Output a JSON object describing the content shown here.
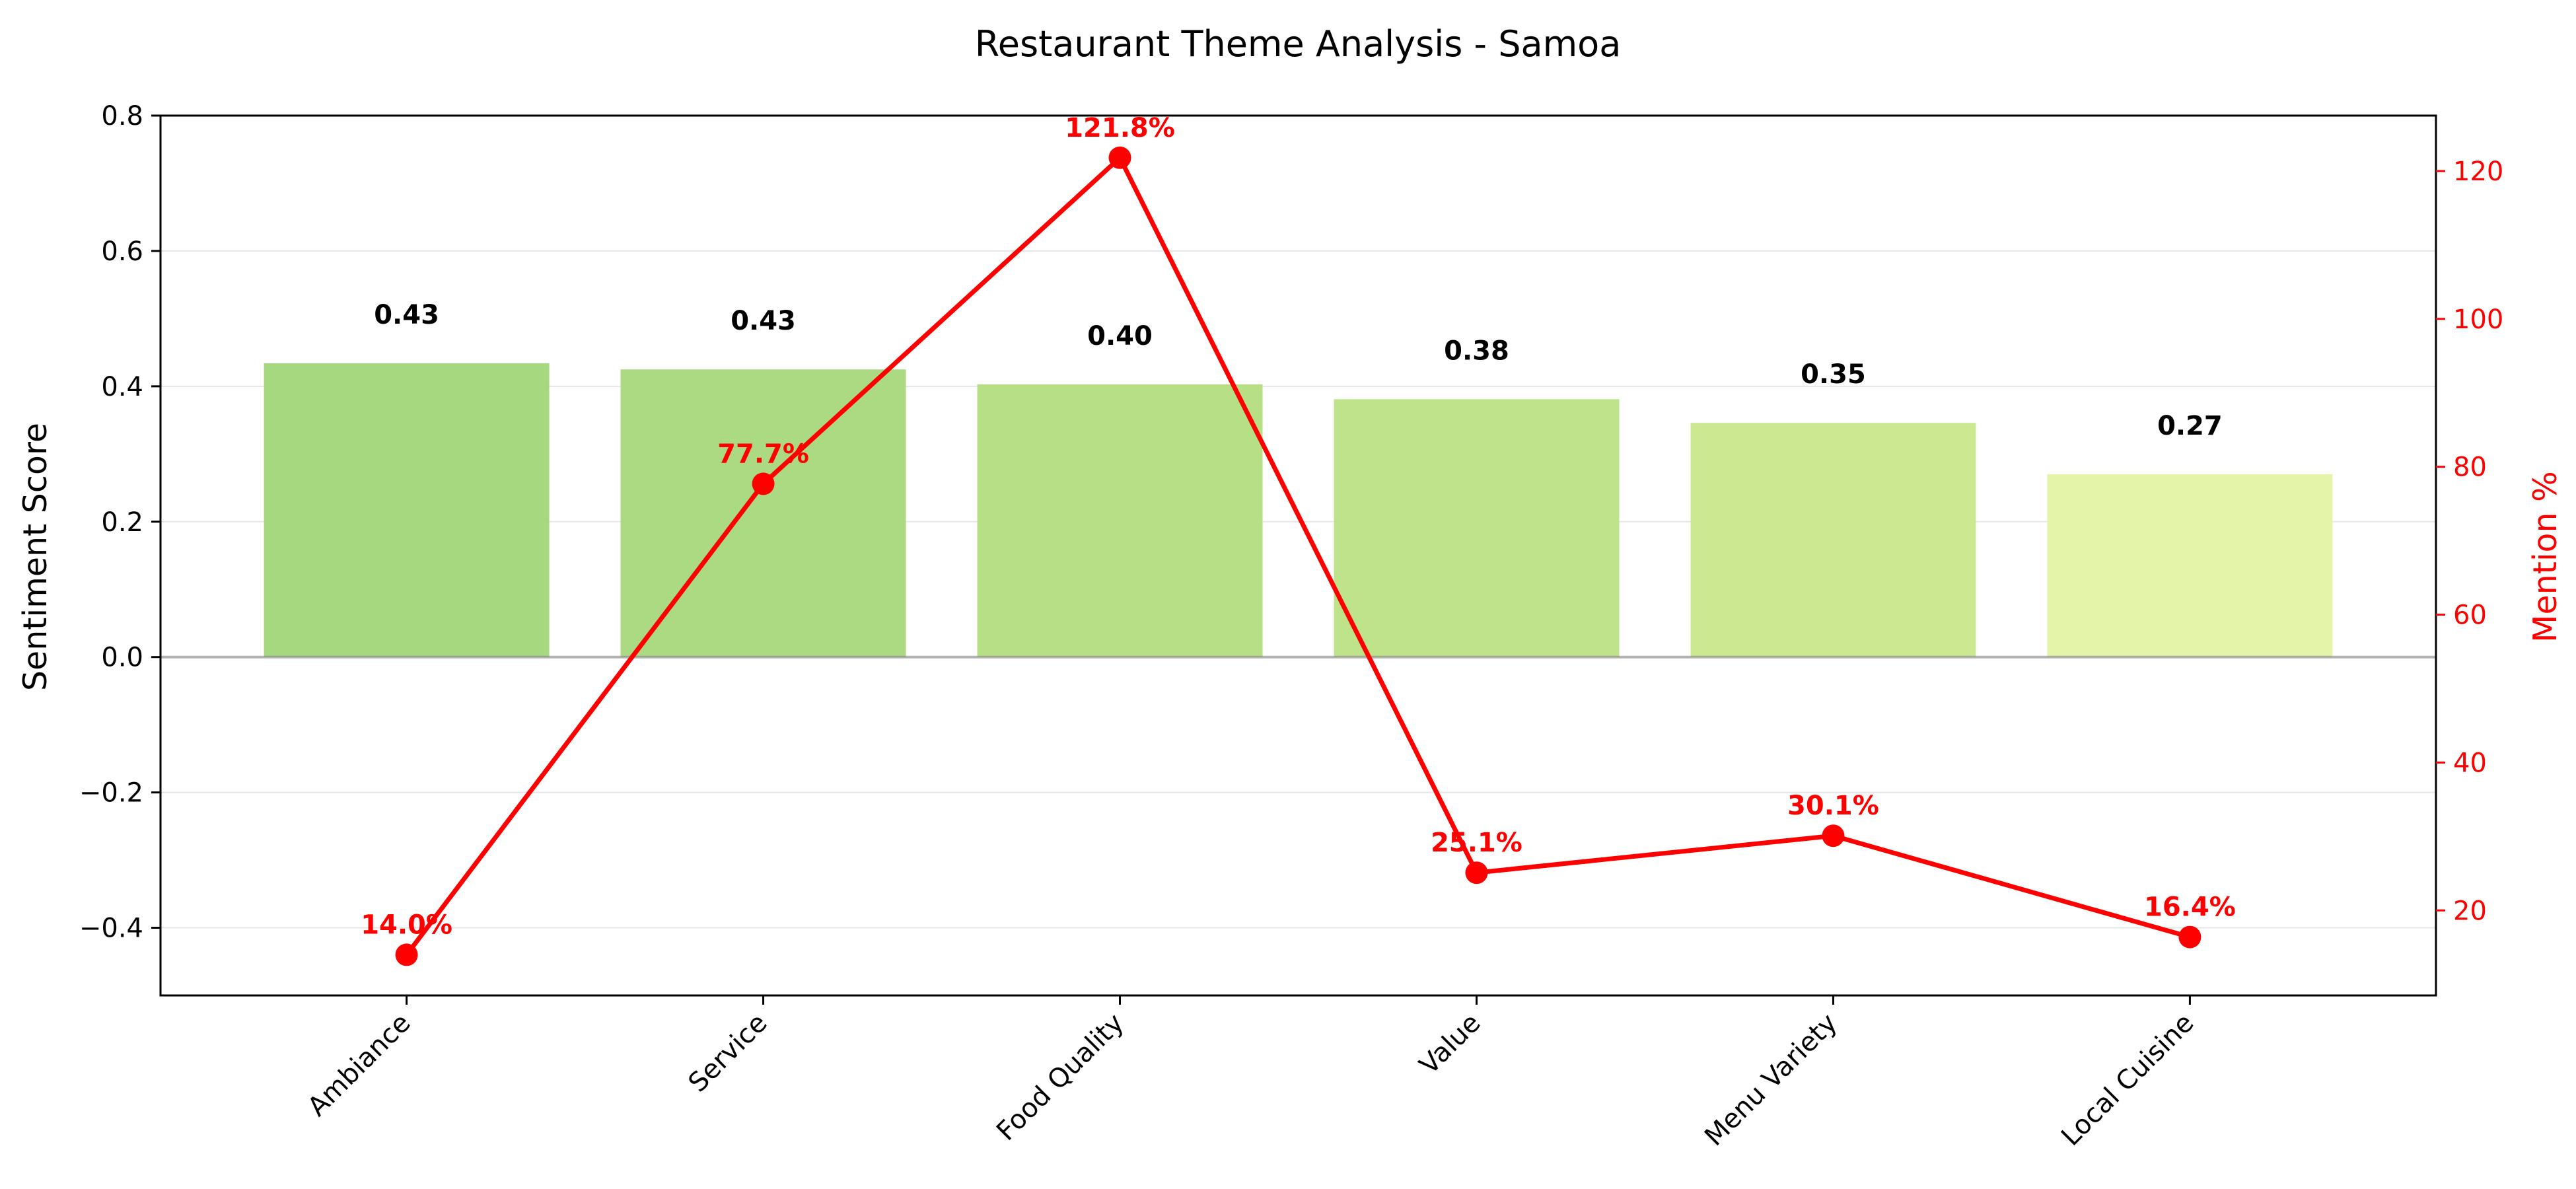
{
  "chart_data": {
    "type": "bar",
    "title": "Restaurant Theme Analysis - Samoa",
    "xlabel": "",
    "ylabel": "Sentiment Score",
    "y2label": "Mention %",
    "categories": [
      "Ambiance",
      "Service",
      "Food Quality",
      "Value",
      "Menu Variety",
      "Local Cuisine"
    ],
    "series": [
      {
        "type": "bar",
        "axis": "left",
        "values": [
          0.434,
          0.425,
          0.403,
          0.381,
          0.346,
          0.27
        ],
        "labels": [
          "0.43",
          "0.43",
          "0.40",
          "0.38",
          "0.35",
          "0.27"
        ],
        "colors": [
          "#a6d87f",
          "#acda82",
          "#b7e086",
          "#bfe38b",
          "#cce991",
          "#e4f4a8"
        ]
      },
      {
        "type": "line",
        "axis": "right",
        "values": [
          14.0,
          77.7,
          121.8,
          25.1,
          30.1,
          16.4
        ],
        "labels": [
          "14.0%",
          "77.7%",
          "121.8%",
          "25.1%",
          "30.1%",
          "16.4%"
        ],
        "color": "#ff0000"
      }
    ],
    "ylim": [
      -0.5,
      0.8
    ],
    "y2lim": [
      8.5,
      127.5
    ],
    "yticks": [
      -0.4,
      -0.2,
      0.0,
      0.2,
      0.4,
      0.6,
      0.8
    ],
    "ytick_labels": [
      "−0.4",
      "−0.2",
      "0.0",
      "0.2",
      "0.4",
      "0.6",
      "0.8"
    ],
    "y2ticks": [
      20,
      40,
      60,
      80,
      100,
      120
    ],
    "y2tick_labels": [
      "20",
      "40",
      "60",
      "80",
      "100",
      "120"
    ],
    "grid": "y",
    "legend": "none"
  }
}
